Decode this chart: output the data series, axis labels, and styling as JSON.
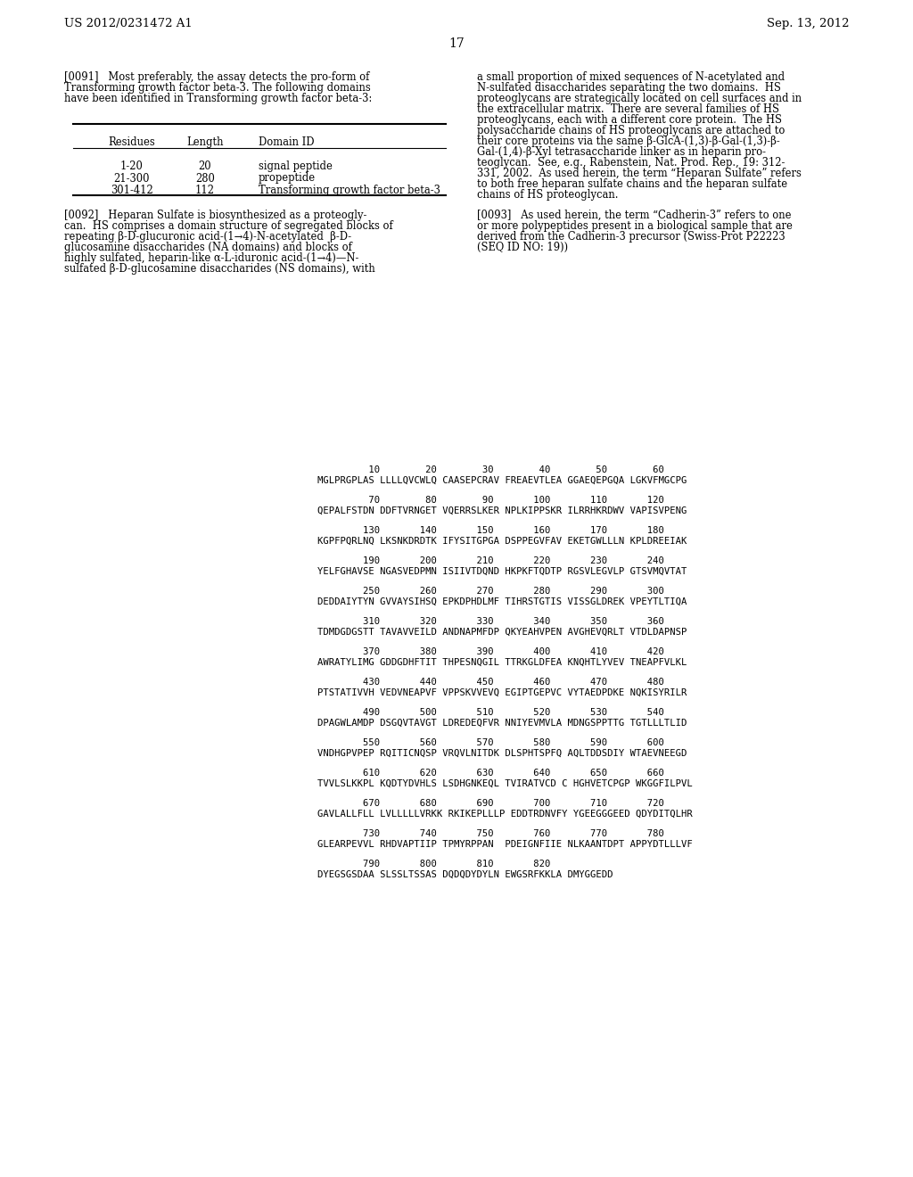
{
  "header_left": "US 2012/0231472 A1",
  "header_right": "Sep. 13, 2012",
  "page_number": "17",
  "background_color": "#ffffff",
  "text_color": "#000000",
  "para_0091_left_lines": [
    "[0091]   Most preferably, the assay detects the pro-form of",
    "Transforming growth factor beta-3. The following domains",
    "have been identified in Transforming growth factor beta-3:"
  ],
  "para_0091_right_lines": [
    "a small proportion of mixed sequences of N-acetylated and",
    "N-sulfated disaccharides separating the two domains.  HS",
    "proteoglycans are strategically located on cell surfaces and in",
    "the extracellular matrix.  There are several families of HS",
    "proteoglycans, each with a different core protein.  The HS",
    "polysaccharide chains of HS proteoglycans are attached to",
    "their core proteins via the same β-GlcA-(1,3)-β-Gal-(1,3)-β-",
    "Gal-(1,4)-β-Xyl tetrasaccharide linker as in heparin pro-",
    "teoglycan.  See, e.g., Rabenstein, Nat. Prod. Rep., 19: 312-",
    "331, 2002.  As used herein, the term “Heparan Sulfate” refers",
    "to both free heparan sulfate chains and the heparan sulfate",
    "chains of HS proteoglycan."
  ],
  "para_0092_left_lines": [
    "[0092]   Heparan Sulfate is biosynthesized as a proteogly-",
    "can.  HS comprises a domain structure of segregated blocks of",
    "repeating β-D-glucuronic acid-(1→4)-N-acetylated  β-D-",
    "glucosamine disaccharides (NA domains) and blocks of",
    "highly sulfated, heparin-like α-L-iduronic acid-(1→4)—N-",
    "sulfated β-D-glucosamine disaccharides (NS domains), with"
  ],
  "para_0093_right_lines": [
    "[0093]   As used herein, the term “Cadherin-3” refers to one",
    "or more polypeptides present in a biological sample that are",
    "derived from the Cadherin-3 precursor (Swiss-Prot P22223",
    "(SEQ ID NO: 19))"
  ],
  "table_col1_header": "Residues",
  "table_col2_header": "Length",
  "table_col3_header": "Domain ID",
  "table_rows": [
    [
      "1-20",
      "20",
      "signal peptide"
    ],
    [
      "21-300",
      "280",
      "propeptide"
    ],
    [
      "301-412",
      "112",
      "Transforming growth factor beta-3"
    ]
  ],
  "sequence_blocks": [
    {
      "numbers": "         10        20        30        40        50        60",
      "seq": "MGLPRGPLAS LLLLQVCWLQ CAASEPCRAV FREAEVTLEA GGAEQEPGQA LGKVFMGCPG"
    },
    {
      "numbers": "         70        80        90       100       110       120",
      "seq": "QEPALFSTDN DDFTVRNGET VQERRSLKER NPLKIPPSKR ILRRHKRDWV VAPISVPENG"
    },
    {
      "numbers": "        130       140       150       160       170       180",
      "seq": "KGPFPQRLNQ LKSNKDRDTK IFYSITGPGA DSPPEGVFAV EKETGWLLLN KPLDREEIAK"
    },
    {
      "numbers": "        190       200       210       220       230       240",
      "seq": "YELFGHAVSE NGASVEDPMN ISIIVTDQND HKPKFTQDTP RGSVLEGVLP GTSVMQVTAT"
    },
    {
      "numbers": "        250       260       270       280       290       300",
      "seq": "DEDDAIYTYN GVVAYSIHSQ EPKDPHDLMF TIHRSTGTIS VISSGLDREK VPEYTLTIQA"
    },
    {
      "numbers": "        310       320       330       340       350       360",
      "seq": "TDMDGDGSTT TAVAVVEILD ANDNAPMFDP QKYEAHVPEN AVGHEVQRLT VTDLDAPNSP"
    },
    {
      "numbers": "        370       380       390       400       410       420",
      "seq": "AWRATYLIMG GDDGDHFTIT THPESNQGIL TTRKGLDFEA KNQHTLYVEV TNEAPFVLKL"
    },
    {
      "numbers": "        430       440       450       460       470       480",
      "seq": "PTSTATIVVH VEDVNEAPVF VPPSKVVEVQ EGIPTGEPVC VYTAEDPDKE NQKISYRILR"
    },
    {
      "numbers": "        490       500       510       520       530       540",
      "seq": "DPAGWLAMDP DSGQVTAVGT LDREDEQFVR NNIYEVMVLA MDNGSPPTTG TGTLLLTLID"
    },
    {
      "numbers": "        550       560       570       580       590       600",
      "seq": "VNDHGPVPEP RQITICNQSP VRQVLNITDK DLSPHTSPFQ AQLTDDSDIY WTAEVNEEGD"
    },
    {
      "numbers": "        610       620       630       640       650       660",
      "seq": "TVVLSLKKPL KQDTYDVHLS LSDHGNKEQL TVIRATVCD C HGHVETCPGP WKGGFILPVL"
    },
    {
      "numbers": "        670       680       690       700       710       720",
      "seq": "GAVLALLFLL LVLLLLLVRKK RKIKEPLLLP EDDTRDNVFY YGEEGGGEED QDYDITQLHR"
    },
    {
      "numbers": "        730       740       750       760       770       780",
      "seq": "GLEARPEVVL RHDVAPTIIP TPMYRPPAN  PDEIGNFIIE NLKAANTDPT APPYDTLLLVF"
    },
    {
      "numbers": "        790       800       810       820",
      "seq": "DYEGSGSDAA SLSSLTSSAS DQDQDYDYLN EWGSRFKKLA DMYGGEDD"
    }
  ]
}
